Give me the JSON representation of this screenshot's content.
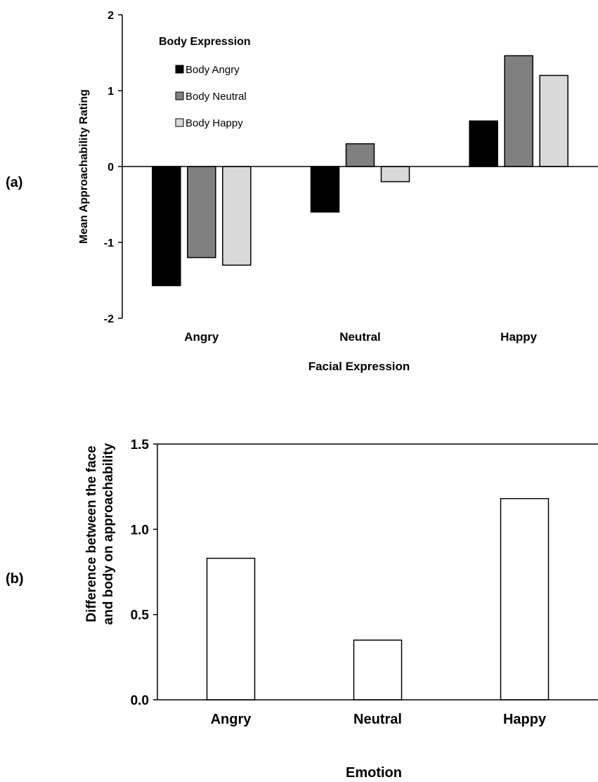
{
  "panels": [
    "(a)",
    "(b)"
  ],
  "chart_data": [
    {
      "type": "bar",
      "panel": "(a)",
      "categories": [
        "Angry",
        "Neutral",
        "Happy"
      ],
      "xlabel": "Facial Expression",
      "ylabel": "Mean Approachability Rating",
      "ylim": [
        -2,
        2
      ],
      "yticks": [
        -2,
        -1,
        0,
        1,
        2
      ],
      "ytick_labels": [
        "-2",
        "-1",
        "0",
        "1",
        "2"
      ],
      "grid": false,
      "legend": {
        "title": "Body Expression",
        "placement": "top-left"
      },
      "series": [
        {
          "name": "Body Angry",
          "color": "#000000",
          "values": [
            -1.57,
            -0.6,
            0.6
          ]
        },
        {
          "name": "Body Neutral",
          "color": "#808080",
          "values": [
            -1.2,
            0.3,
            1.46
          ]
        },
        {
          "name": "Body Happy",
          "color": "#d9d9d9",
          "values": [
            -1.3,
            -0.2,
            1.2
          ]
        }
      ]
    },
    {
      "type": "bar",
      "panel": "(b)",
      "categories": [
        "Angry",
        "Neutral",
        "Happy"
      ],
      "xlabel": "Emotion",
      "ylabel": [
        "Difference between the face",
        "and body on approachability"
      ],
      "ylim": [
        0,
        1.5
      ],
      "yticks": [
        0,
        0.5,
        1.0,
        1.5
      ],
      "ytick_labels": [
        "0.0",
        "0.5",
        "1.0",
        "1.5"
      ],
      "grid": false,
      "bar_color": "#ffffff",
      "values": [
        0.83,
        0.35,
        1.18
      ]
    }
  ]
}
